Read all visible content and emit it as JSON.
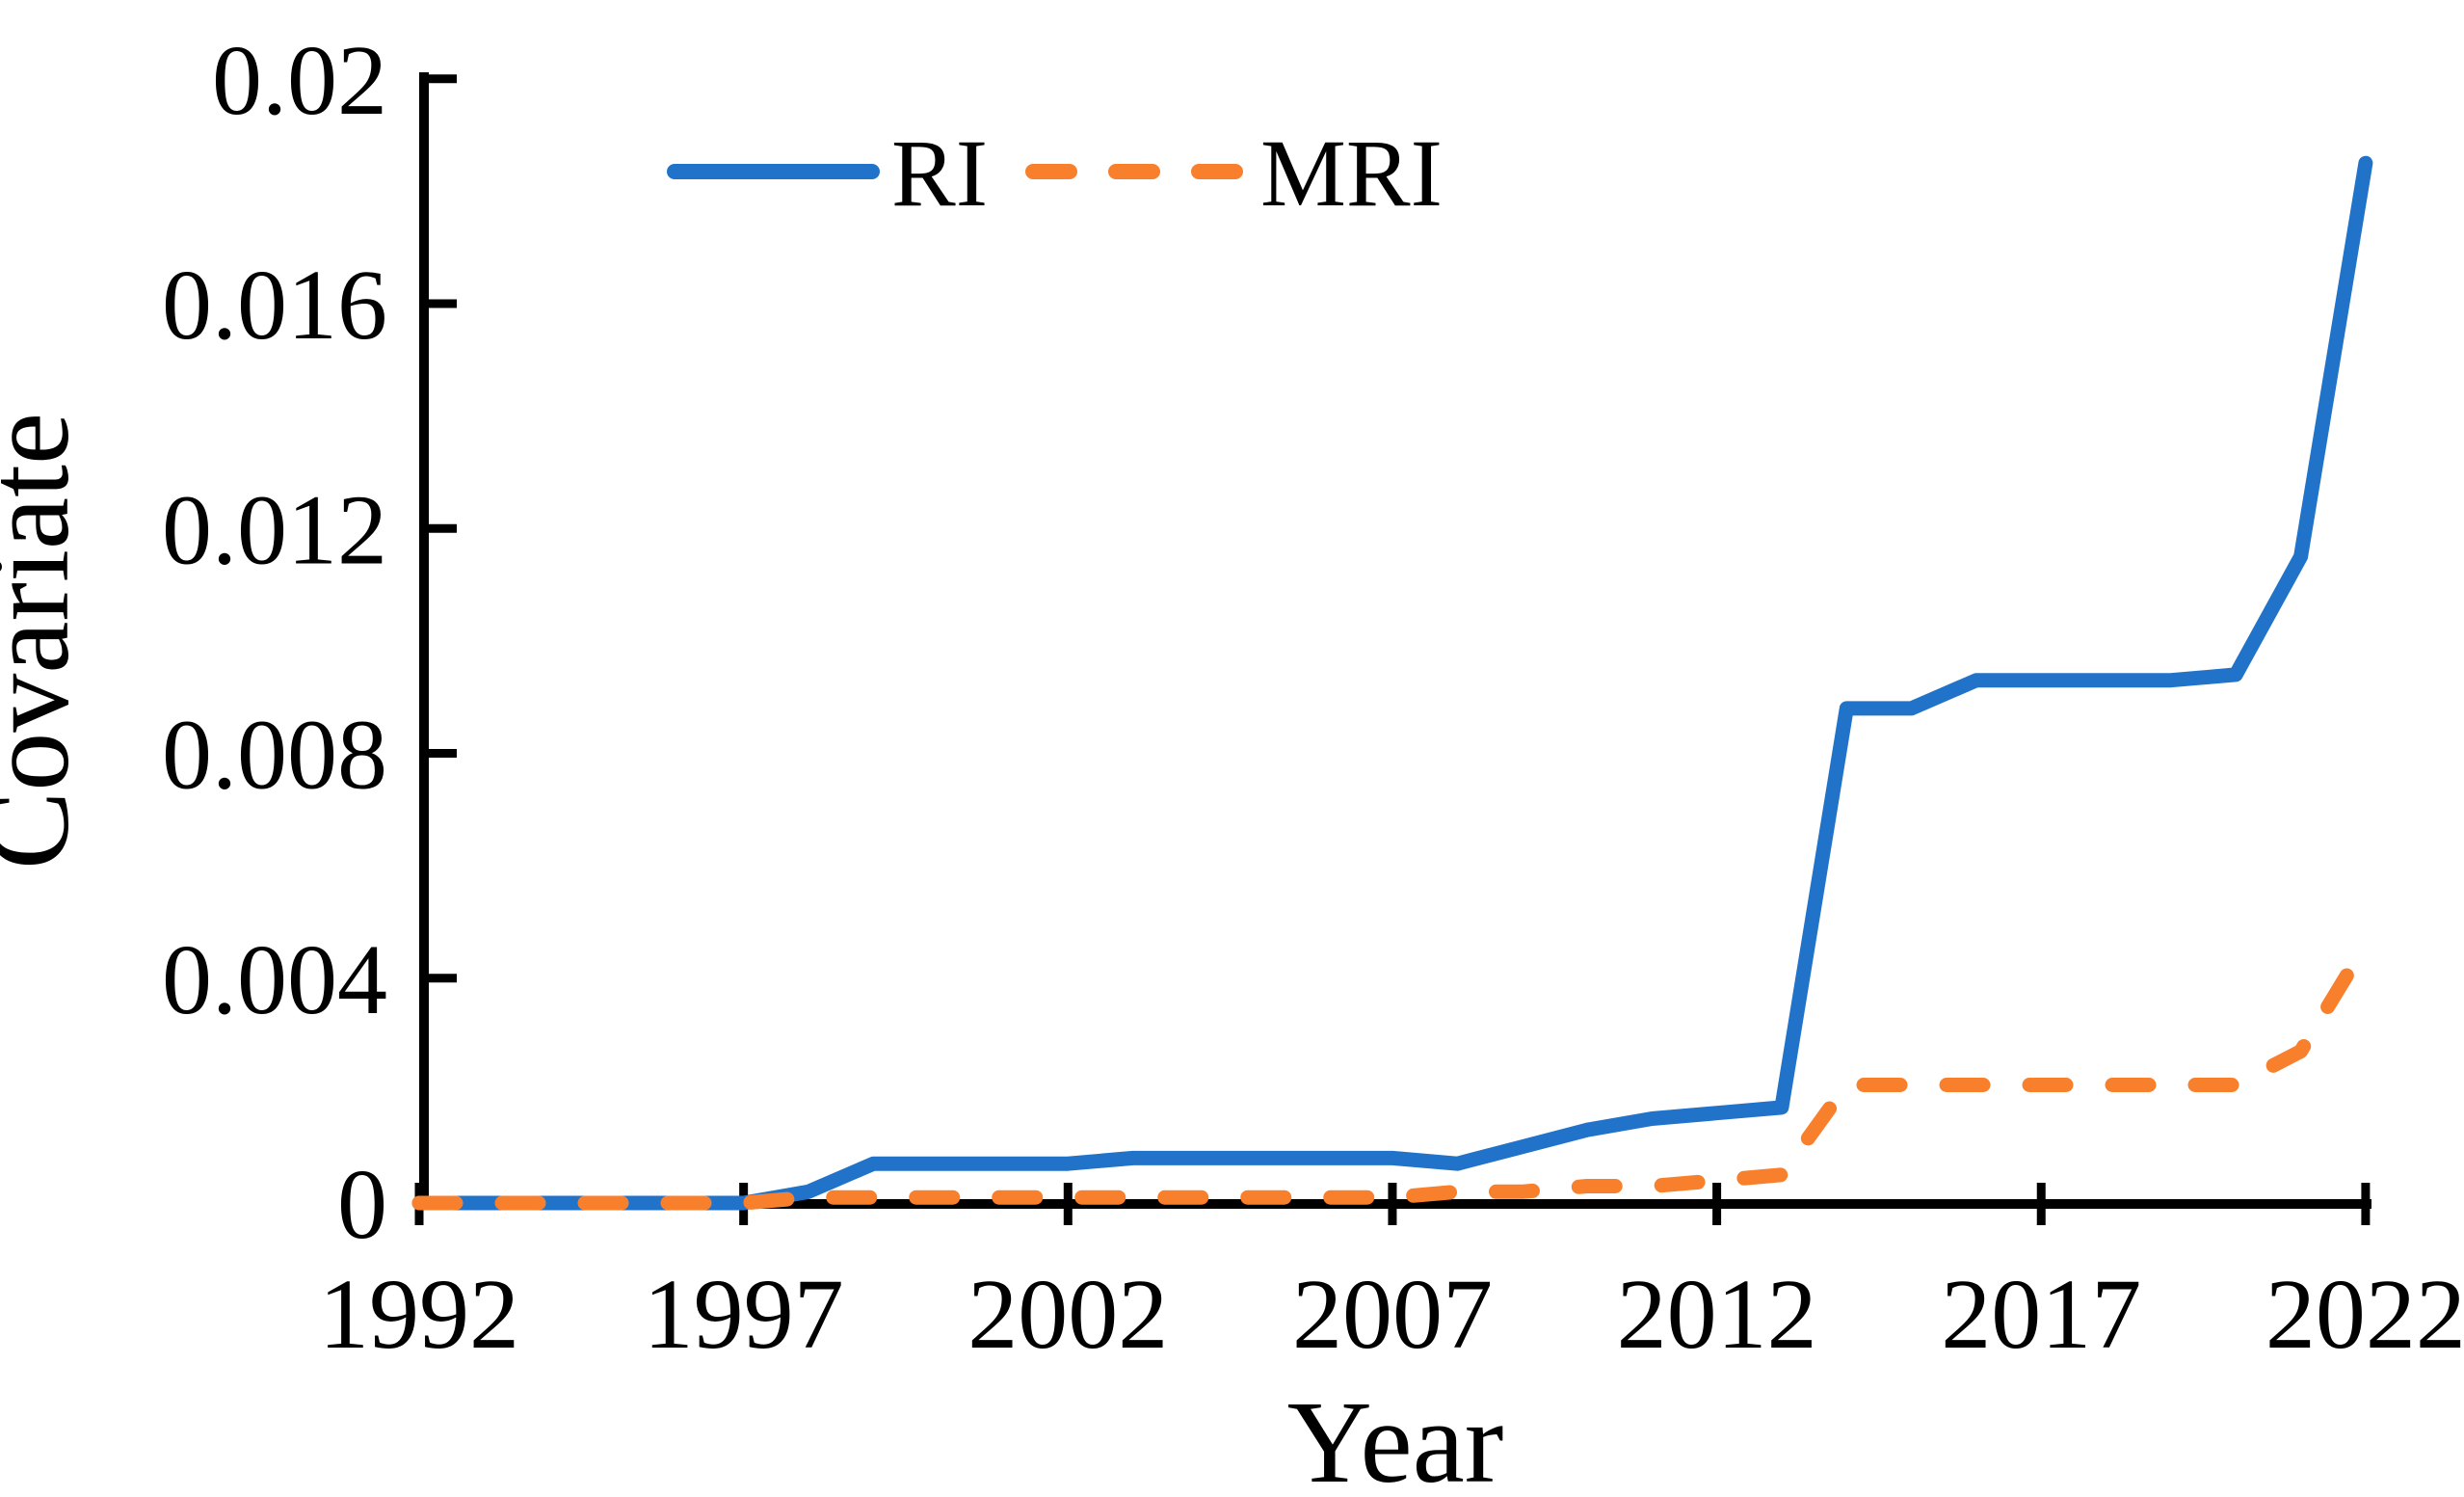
{
  "figure": {
    "background": "#ffffff",
    "axis_color": "#000000",
    "text_color": "#000000"
  },
  "chart_data": {
    "type": "line",
    "xlabel": "Year",
    "ylabel": "Covariate",
    "xlim": [
      1992,
      2022
    ],
    "ylim": [
      0,
      0.02
    ],
    "grid": false,
    "legend_position": "top-inside",
    "x_ticks": [
      {
        "v": 1992,
        "label": "1992"
      },
      {
        "v": 1997,
        "label": "1997"
      },
      {
        "v": 2002,
        "label": "2002"
      },
      {
        "v": 2007,
        "label": "2007"
      },
      {
        "v": 2012,
        "label": "2012"
      },
      {
        "v": 2017,
        "label": "2017"
      },
      {
        "v": 2022,
        "label": "2022"
      }
    ],
    "y_ticks": [
      {
        "v": 0,
        "label": "0"
      },
      {
        "v": 0.004,
        "label": "0.004"
      },
      {
        "v": 0.008,
        "label": "0.008"
      },
      {
        "v": 0.012,
        "label": "0.012"
      },
      {
        "v": 0.016,
        "label": "0.016"
      },
      {
        "v": 0.02,
        "label": "0.02"
      }
    ],
    "x": [
      1992,
      1993,
      1994,
      1995,
      1996,
      1997,
      1998,
      1999,
      2000,
      2001,
      2002,
      2003,
      2004,
      2005,
      2006,
      2007,
      2008,
      2009,
      2010,
      2011,
      2012,
      2013,
      2014,
      2015,
      2016,
      2017,
      2018,
      2019,
      2020,
      2021,
      2022
    ],
    "series": [
      {
        "name": "RI",
        "color": "#2173c9",
        "style": "solid",
        "values": [
          0,
          0,
          0,
          0,
          0,
          0,
          0.0002,
          0.0007,
          0.0007,
          0.0007,
          0.0007,
          0.0008,
          0.0008,
          0.0008,
          0.0008,
          0.0008,
          0.0007,
          0.001,
          0.0013,
          0.0015,
          0.0016,
          0.0017,
          0.0088,
          0.0088,
          0.0093,
          0.0093,
          0.0093,
          0.0093,
          0.0094,
          0.0115,
          0.0185
        ]
      },
      {
        "name": "MRI",
        "color": "#f8802d",
        "style": "dashed",
        "values": [
          0,
          0,
          0,
          0,
          0,
          0,
          0.0001,
          0.0001,
          0.0001,
          0.0001,
          0.0001,
          0.0001,
          0.0001,
          0.0001,
          0.0001,
          0.0001,
          0.0002,
          0.0002,
          0.0003,
          0.0003,
          0.0004,
          0.0005,
          0.0021,
          0.0021,
          0.0021,
          0.0021,
          0.0021,
          0.0021,
          0.0021,
          0.0027,
          0.0046
        ]
      }
    ]
  }
}
